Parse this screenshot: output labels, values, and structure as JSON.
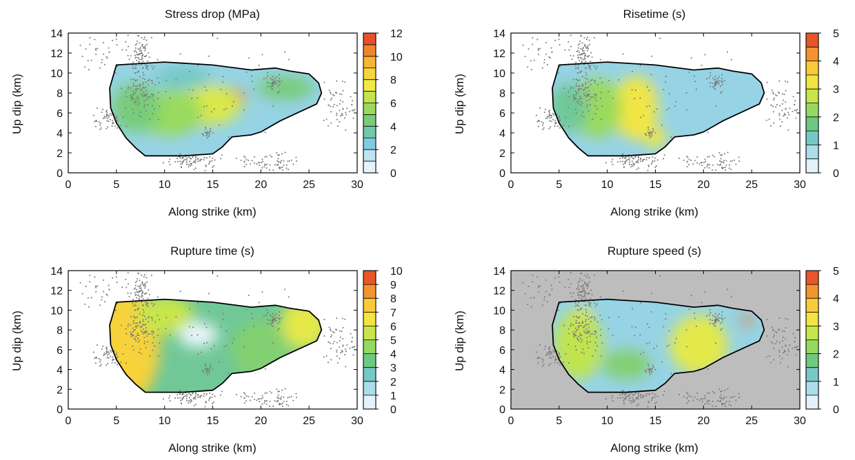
{
  "chart_data": [
    {
      "type": "heatmap",
      "title": "Stress drop (MPa)",
      "xlabel": "Along strike (km)",
      "ylabel": "Up dip (km)",
      "xlim": [
        0,
        30
      ],
      "ylim": [
        0,
        14
      ],
      "xticks": [
        "0",
        "5",
        "10",
        "15",
        "20",
        "25",
        "30"
      ],
      "yticks": [
        "0",
        "2",
        "4",
        "6",
        "8",
        "10",
        "12",
        "14"
      ],
      "colorbar": {
        "ticks": [
          "0",
          "2",
          "4",
          "6",
          "8",
          "10",
          "12"
        ],
        "range": [
          0,
          12
        ],
        "levels": 12
      },
      "background": "#ffffff",
      "contour": [
        [
          5,
          10.8
        ],
        [
          10,
          11.1
        ],
        [
          15,
          10.8
        ],
        [
          19,
          10.3
        ],
        [
          21.5,
          10.5
        ],
        [
          23,
          10.2
        ],
        [
          25,
          9.9
        ],
        [
          26,
          9
        ],
        [
          26.3,
          8
        ],
        [
          25.8,
          6.9
        ],
        [
          24,
          6.1
        ],
        [
          22,
          5.2
        ],
        [
          20,
          4.1
        ],
        [
          19,
          3.8
        ],
        [
          17,
          3.6
        ],
        [
          16,
          2.6
        ],
        [
          15,
          1.9
        ],
        [
          12,
          1.7
        ],
        [
          8,
          1.7
        ],
        [
          7,
          2.5
        ],
        [
          6,
          3.5
        ],
        [
          5,
          5
        ],
        [
          4.4,
          6.5
        ],
        [
          4.3,
          8.5
        ]
      ],
      "hotspots": [
        {
          "x": 17,
          "y": 7.5,
          "value": 11,
          "rx": 1.3,
          "ry": 0.9
        },
        {
          "x": 14.5,
          "y": 6.8,
          "value": 7,
          "rx": 3.5,
          "ry": 2.0
        },
        {
          "x": 10.5,
          "y": 6.0,
          "value": 5.5,
          "rx": 3.5,
          "ry": 2.3
        },
        {
          "x": 7.0,
          "y": 6.5,
          "value": 4.5,
          "rx": 2.5,
          "ry": 2.5
        },
        {
          "x": 22.5,
          "y": 8.5,
          "value": 4.5,
          "rx": 3.0,
          "ry": 1.2
        },
        {
          "x": 12,
          "y": 9.5,
          "value": 3,
          "rx": 3.0,
          "ry": 1.2
        }
      ]
    },
    {
      "type": "heatmap",
      "title": "Risetime (s)",
      "xlabel": "Along strike (km)",
      "ylabel": "Up dip (km)",
      "xlim": [
        0,
        30
      ],
      "ylim": [
        0,
        14
      ],
      "xticks": [
        "0",
        "5",
        "10",
        "15",
        "20",
        "25",
        "30"
      ],
      "yticks": [
        "0",
        "2",
        "4",
        "6",
        "8",
        "10",
        "12",
        "14"
      ],
      "colorbar": {
        "ticks": [
          "0",
          "1",
          "2",
          "3",
          "4",
          "5"
        ],
        "range": [
          0,
          5
        ],
        "levels": 10
      },
      "background": "#ffffff",
      "contour": [
        [
          5,
          10.8
        ],
        [
          10,
          11.1
        ],
        [
          15,
          10.8
        ],
        [
          19,
          10.3
        ],
        [
          21.5,
          10.5
        ],
        [
          23,
          10.2
        ],
        [
          25,
          9.9
        ],
        [
          26,
          9
        ],
        [
          26.3,
          8
        ],
        [
          25.8,
          6.9
        ],
        [
          24,
          6.1
        ],
        [
          22,
          5.2
        ],
        [
          20,
          4.1
        ],
        [
          19,
          3.8
        ],
        [
          17,
          3.6
        ],
        [
          16,
          2.6
        ],
        [
          15,
          1.9
        ],
        [
          12,
          1.7
        ],
        [
          8,
          1.7
        ],
        [
          7,
          2.5
        ],
        [
          6,
          3.5
        ],
        [
          5,
          5
        ],
        [
          4.4,
          6.5
        ],
        [
          4.3,
          8.5
        ]
      ],
      "hotspots": [
        {
          "x": 13,
          "y": 8,
          "value": 4.7,
          "rx": 1.3,
          "ry": 1.0
        },
        {
          "x": 13,
          "y": 6.5,
          "value": 3.2,
          "rx": 2.3,
          "ry": 3.2
        },
        {
          "x": 15,
          "y": 3.5,
          "value": 3.2,
          "rx": 1.2,
          "ry": 1.0
        },
        {
          "x": 9,
          "y": 6.5,
          "value": 2.3,
          "rx": 2.5,
          "ry": 3.0
        },
        {
          "x": 6,
          "y": 6.5,
          "value": 1.6,
          "rx": 2.0,
          "ry": 2.5
        }
      ]
    },
    {
      "type": "heatmap",
      "title": "Rupture time (s)",
      "xlabel": "Along strike (km)",
      "ylabel": "Up dip (km)",
      "xlim": [
        0,
        30
      ],
      "ylim": [
        0,
        14
      ],
      "xticks": [
        "0",
        "5",
        "10",
        "15",
        "20",
        "25",
        "30"
      ],
      "yticks": [
        "0",
        "2",
        "4",
        "6",
        "8",
        "10",
        "12",
        "14"
      ],
      "colorbar": {
        "ticks": [
          "0",
          "1",
          "2",
          "3",
          "4",
          "5",
          "6",
          "7",
          "8",
          "9",
          "10"
        ],
        "range": [
          0,
          10
        ],
        "levels": 10
      },
      "background": "#ffffff",
      "base_value": 3.2,
      "contour": [
        [
          5,
          10.8
        ],
        [
          10,
          11.1
        ],
        [
          15,
          10.8
        ],
        [
          19,
          10.3
        ],
        [
          21.5,
          10.5
        ],
        [
          23,
          10.2
        ],
        [
          25,
          9.9
        ],
        [
          26,
          9
        ],
        [
          26.3,
          8
        ],
        [
          25.8,
          6.9
        ],
        [
          24,
          6.1
        ],
        [
          22,
          5.2
        ],
        [
          20,
          4.1
        ],
        [
          19,
          3.8
        ],
        [
          17,
          3.6
        ],
        [
          16,
          2.6
        ],
        [
          15,
          1.9
        ],
        [
          12,
          1.7
        ],
        [
          8,
          1.7
        ],
        [
          7,
          2.5
        ],
        [
          6,
          3.5
        ],
        [
          5,
          5
        ],
        [
          4.4,
          6.5
        ],
        [
          4.3,
          8.5
        ]
      ],
      "hotspots": [
        {
          "x": 6,
          "y": 6.5,
          "value": 7.2,
          "rx": 3.5,
          "ry": 6.0
        },
        {
          "x": 10,
          "y": 9.5,
          "value": 5.5,
          "rx": 3.0,
          "ry": 2.0
        },
        {
          "x": 24.5,
          "y": 8.5,
          "value": 6.0,
          "rx": 2.5,
          "ry": 2.5
        },
        {
          "x": 20,
          "y": 6.0,
          "value": 4.0,
          "rx": 3.0,
          "ry": 3.0
        },
        {
          "x": 13.5,
          "y": 7.5,
          "value": 0.3,
          "rx": 2.0,
          "ry": 1.3
        }
      ]
    },
    {
      "type": "heatmap",
      "title": "Rupture speed (s)",
      "xlabel": "Along strike (km)",
      "ylabel": "Up dip (km)",
      "xlim": [
        0,
        30
      ],
      "ylim": [
        0,
        14
      ],
      "xticks": [
        "0",
        "5",
        "10",
        "15",
        "20",
        "25",
        "30"
      ],
      "yticks": [
        "0",
        "2",
        "4",
        "6",
        "8",
        "10",
        "12",
        "14"
      ],
      "colorbar": {
        "ticks": [
          "0",
          "1",
          "2",
          "3",
          "4",
          "5"
        ],
        "range": [
          0,
          5
        ],
        "levels": 10
      },
      "background": "#bdbdbd",
      "contour": [
        [
          5,
          10.8
        ],
        [
          10,
          11.1
        ],
        [
          15,
          10.8
        ],
        [
          19,
          10.3
        ],
        [
          21.5,
          10.5
        ],
        [
          23,
          10.2
        ],
        [
          25,
          9.9
        ],
        [
          26,
          9
        ],
        [
          26.3,
          8
        ],
        [
          25.8,
          6.9
        ],
        [
          24,
          6.1
        ],
        [
          22,
          5.2
        ],
        [
          20,
          4.1
        ],
        [
          19,
          3.8
        ],
        [
          17,
          3.6
        ],
        [
          16,
          2.6
        ],
        [
          15,
          1.9
        ],
        [
          12,
          1.7
        ],
        [
          8,
          1.7
        ],
        [
          7,
          2.5
        ],
        [
          6,
          3.5
        ],
        [
          5,
          5
        ],
        [
          4.4,
          6.5
        ],
        [
          4.3,
          8.5
        ]
      ],
      "hotspots": [
        {
          "x": 7,
          "y": 6.5,
          "value": 2.7,
          "rx": 2.5,
          "ry": 3.5
        },
        {
          "x": 19.5,
          "y": 6.5,
          "value": 3.0,
          "rx": 3.0,
          "ry": 3.0
        },
        {
          "x": 24.5,
          "y": 9,
          "value": 4.5,
          "rx": 0.5,
          "ry": 0.6
        },
        {
          "x": 7.5,
          "y": 9.6,
          "value": 3.2,
          "rx": 0.8,
          "ry": 0.6
        },
        {
          "x": 12,
          "y": 4.5,
          "value": 2.0,
          "rx": 2.5,
          "ry": 1.5
        }
      ]
    }
  ]
}
